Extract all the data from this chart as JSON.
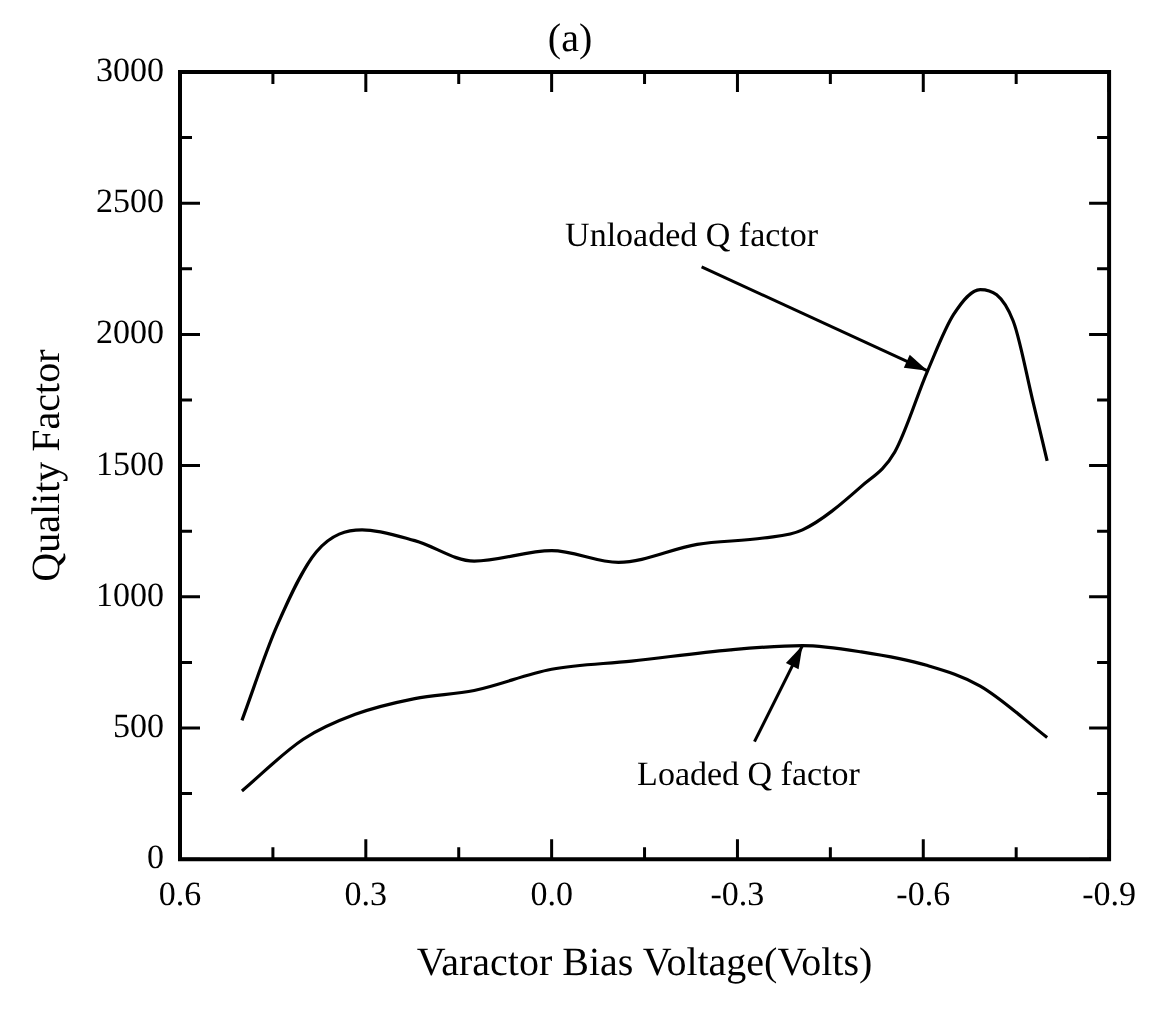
{
  "chart_data": {
    "type": "line",
    "title": "(a)",
    "xlabel": "Varactor Bias Voltage(Volts)",
    "ylabel": "Quality Factor",
    "xlim": [
      0.6,
      -0.9
    ],
    "xticks": [
      0.6,
      {
        "value": 0.45,
        "label": null
      },
      0.3,
      {
        "value": 0.15,
        "label": null
      },
      {
        "value": 0,
        "label": "0.0"
      },
      {
        "value": -0.15,
        "label": null
      },
      -0.3,
      {
        "value": -0.45,
        "label": null
      },
      -0.6,
      {
        "value": -0.75,
        "label": null
      },
      -0.9
    ],
    "ylim": [
      0,
      3000
    ],
    "yticks": [
      0,
      {
        "value": 250,
        "label": null
      },
      500,
      {
        "value": 750,
        "label": null
      },
      1000,
      {
        "value": 1250,
        "label": null
      },
      1500,
      {
        "value": 1750,
        "label": null
      },
      2000,
      {
        "value": 2250,
        "label": null
      },
      2500,
      {
        "value": 2750,
        "label": null
      },
      3000
    ],
    "grid": false,
    "legend": false,
    "marker": "none",
    "line_style": "solid",
    "series": [
      {
        "color": "#000000",
        "x": [
          0.5,
          0.444,
          0.38,
          0.306,
          0.221,
          0.125,
          0.0,
          -0.108,
          -0.235,
          -0.342,
          -0.405,
          -0.5,
          -0.554,
          -0.607,
          -0.649,
          -0.692,
          -0.745,
          -0.777,
          -0.8
        ],
        "values": [
          529,
          886,
          1171,
          1255,
          1214,
          1136,
          1176,
          1131,
          1200,
          1224,
          1255,
          1421,
          1552,
          1861,
          2076,
          2171,
          2052,
          1745,
          1518
        ]
      },
      {
        "color": "#000000",
        "x": [
          0.5,
          0.401,
          0.317,
          0.221,
          0.125,
          0.0,
          -0.129,
          -0.289,
          -0.405,
          -0.5,
          -0.607,
          -0.692,
          -0.8
        ],
        "values": [
          260,
          457,
          552,
          612,
          643,
          724,
          755,
          798,
          814,
          790,
          738,
          660,
          464
        ]
      }
    ],
    "annotations": [
      {
        "text": "Unloaded Q factor",
        "x": -0.607,
        "y": 1861
      },
      {
        "text": "Loaded Q factor",
        "x": -0.405,
        "y": 814
      }
    ]
  }
}
